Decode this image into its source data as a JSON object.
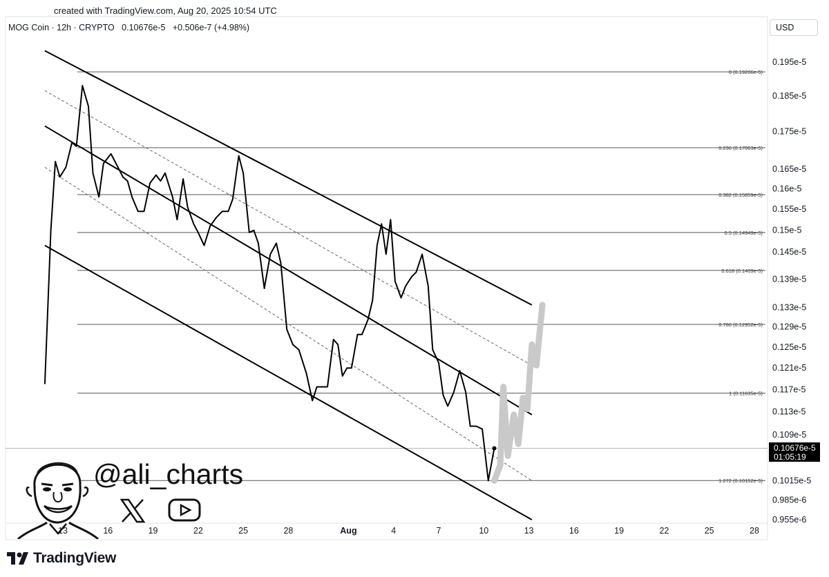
{
  "header": {
    "created": "created with TradingView.com, Aug 20, 2025 10:54 UTC",
    "symbol": "MOG Coin · 12h · CRYPTO",
    "price": "0.10676e-5",
    "change": "+0.506e-7 (+4.98%)",
    "currency": "USD"
  },
  "watermark": {
    "handle": "@ali_charts",
    "icons": [
      "avatar-caricature",
      "x-icon",
      "youtube-icon"
    ]
  },
  "footer": {
    "brand": "TradingView"
  },
  "price_badge": {
    "price": "0.10676e-5",
    "countdown": "01:05:19"
  },
  "chart_data": {
    "type": "line",
    "title": "MOG Coin · 12h · CRYPTO",
    "xlabel": "",
    "ylabel": "",
    "ylim": [
      0.0955,
      0.1985
    ],
    "x_ticks": [
      "10",
      "13",
      "16",
      "19",
      "22",
      "25",
      "28",
      "Aug",
      "4",
      "7",
      "10",
      "13",
      "16",
      "19",
      "22",
      "25",
      "28"
    ],
    "y_ticks": [
      "0.195e-5",
      "0.185e-5",
      "0.175e-5",
      "0.165e-5",
      "0.16e-5",
      "0.155e-5",
      "0.15e-5",
      "0.145e-5",
      "0.139e-5",
      "0.133e-5",
      "0.129e-5",
      "0.125e-5",
      "0.121e-5",
      "0.117e-5",
      "0.113e-5",
      "0.109e-5",
      "0.1015e-5",
      "0.985e-6",
      "0.955e-6"
    ],
    "y_tick_values": [
      0.195,
      0.185,
      0.175,
      0.165,
      0.16,
      0.155,
      0.15,
      0.145,
      0.139,
      0.133,
      0.129,
      0.125,
      0.121,
      0.117,
      0.113,
      0.109,
      0.1015,
      0.0985,
      0.0955
    ],
    "fib_levels": [
      {
        "ratio": "0",
        "label": "0 (0.19206e-5)",
        "value": 0.19206
      },
      {
        "ratio": "0.236",
        "label": "0.236 (0.17063e-5)",
        "value": 0.17063
      },
      {
        "ratio": "0.382",
        "label": "0.382 (0.15859e-5)",
        "value": 0.15859
      },
      {
        "ratio": "0.5",
        "label": "0.5 (0.14949e-5)",
        "value": 0.14949
      },
      {
        "ratio": "0.618",
        "label": "0.618 (0.1409e-5)",
        "value": 0.1409
      },
      {
        "ratio": "0.786",
        "label": "0.786 (0.12952e-5)",
        "value": 0.12952
      },
      {
        "ratio": "1",
        "label": "1 (0.11635e-5)",
        "value": 0.11635
      },
      {
        "ratio": "1.272",
        "label": "1.272 (0.10152e-5)",
        "value": 0.10152
      }
    ],
    "series": [
      {
        "values": [
          {
            "d": -1.2,
            "v": 0.118
          },
          {
            "d": -0.8,
            "v": 0.15
          },
          {
            "d": -0.5,
            "v": 0.167
          },
          {
            "d": -0.2,
            "v": 0.163
          },
          {
            "d": 0.2,
            "v": 0.1655
          },
          {
            "d": 0.6,
            "v": 0.172
          },
          {
            "d": 0.9,
            "v": 0.171
          },
          {
            "d": 1.3,
            "v": 0.188
          },
          {
            "d": 1.7,
            "v": 0.182
          },
          {
            "d": 2.0,
            "v": 0.164
          },
          {
            "d": 2.4,
            "v": 0.158
          },
          {
            "d": 2.7,
            "v": 0.1665
          },
          {
            "d": 3.2,
            "v": 0.169
          },
          {
            "d": 3.6,
            "v": 0.166
          },
          {
            "d": 4.0,
            "v": 0.163
          },
          {
            "d": 4.3,
            "v": 0.162
          },
          {
            "d": 4.6,
            "v": 0.158
          },
          {
            "d": 5.0,
            "v": 0.1545
          },
          {
            "d": 5.4,
            "v": 0.1545
          },
          {
            "d": 5.8,
            "v": 0.1615
          },
          {
            "d": 6.2,
            "v": 0.1635
          },
          {
            "d": 6.5,
            "v": 0.162
          },
          {
            "d": 6.8,
            "v": 0.164
          },
          {
            "d": 7.3,
            "v": 0.158
          },
          {
            "d": 7.6,
            "v": 0.1525
          },
          {
            "d": 8.0,
            "v": 0.1625
          },
          {
            "d": 8.3,
            "v": 0.1555
          },
          {
            "d": 8.7,
            "v": 0.1515
          },
          {
            "d": 9.0,
            "v": 0.1495
          },
          {
            "d": 9.4,
            "v": 0.1465
          },
          {
            "d": 9.8,
            "v": 0.151
          },
          {
            "d": 10.2,
            "v": 0.153
          },
          {
            "d": 10.6,
            "v": 0.1545
          },
          {
            "d": 11.0,
            "v": 0.1545
          },
          {
            "d": 11.3,
            "v": 0.1575
          },
          {
            "d": 11.7,
            "v": 0.1685
          },
          {
            "d": 12.0,
            "v": 0.164
          },
          {
            "d": 12.4,
            "v": 0.1495
          },
          {
            "d": 12.7,
            "v": 0.15
          },
          {
            "d": 13.0,
            "v": 0.147
          },
          {
            "d": 13.4,
            "v": 0.137
          },
          {
            "d": 13.8,
            "v": 0.1445
          },
          {
            "d": 14.2,
            "v": 0.147
          },
          {
            "d": 14.5,
            "v": 0.1425
          },
          {
            "d": 14.9,
            "v": 0.1285
          },
          {
            "d": 15.3,
            "v": 0.1255
          },
          {
            "d": 15.7,
            "v": 0.1245
          },
          {
            "d": 16.2,
            "v": 0.12
          },
          {
            "d": 16.6,
            "v": 0.115
          },
          {
            "d": 16.9,
            "v": 0.1175
          },
          {
            "d": 17.3,
            "v": 0.1175
          },
          {
            "d": 17.6,
            "v": 0.1175
          },
          {
            "d": 18.0,
            "v": 0.1265
          },
          {
            "d": 18.3,
            "v": 0.1255
          },
          {
            "d": 18.6,
            "v": 0.1195
          },
          {
            "d": 18.9,
            "v": 0.121
          },
          {
            "d": 19.2,
            "v": 0.121
          },
          {
            "d": 19.6,
            "v": 0.1275
          },
          {
            "d": 19.9,
            "v": 0.1275
          },
          {
            "d": 20.3,
            "v": 0.1305
          },
          {
            "d": 20.6,
            "v": 0.1345
          },
          {
            "d": 20.9,
            "v": 0.1465
          },
          {
            "d": 21.2,
            "v": 0.1515
          },
          {
            "d": 21.5,
            "v": 0.1445
          },
          {
            "d": 21.8,
            "v": 0.1525
          },
          {
            "d": 22.1,
            "v": 0.1385
          },
          {
            "d": 22.5,
            "v": 0.135
          },
          {
            "d": 22.8,
            "v": 0.1375
          },
          {
            "d": 23.2,
            "v": 0.1395
          },
          {
            "d": 23.5,
            "v": 0.1405
          },
          {
            "d": 23.9,
            "v": 0.1445
          },
          {
            "d": 24.3,
            "v": 0.1375
          },
          {
            "d": 24.6,
            "v": 0.1245
          },
          {
            "d": 25.0,
            "v": 0.122
          },
          {
            "d": 25.3,
            "v": 0.116
          },
          {
            "d": 25.6,
            "v": 0.114
          },
          {
            "d": 26.0,
            "v": 0.1165
          },
          {
            "d": 26.4,
            "v": 0.1205
          },
          {
            "d": 26.8,
            "v": 0.1165
          },
          {
            "d": 27.1,
            "v": 0.1105
          },
          {
            "d": 27.5,
            "v": 0.1105
          },
          {
            "d": 27.9,
            "v": 0.11
          },
          {
            "d": 28.3,
            "v": 0.1015
          },
          {
            "d": 28.7,
            "v": 0.10676
          }
        ]
      }
    ],
    "channels": [
      {
        "from": {
          "d": -1.2,
          "v": 0.1985
        },
        "to": {
          "d": 31.2,
          "v": 0.1335
        },
        "style": "solid"
      },
      {
        "from": {
          "d": -1.2,
          "v": 0.1865
        },
        "to": {
          "d": 31.2,
          "v": 0.1215
        },
        "style": "dashed"
      },
      {
        "from": {
          "d": -1.2,
          "v": 0.1765
        },
        "to": {
          "d": 31.2,
          "v": 0.1125
        },
        "style": "solid"
      },
      {
        "from": {
          "d": -1.2,
          "v": 0.1655
        },
        "to": {
          "d": 31.2,
          "v": 0.1015
        },
        "style": "dashed"
      },
      {
        "from": {
          "d": -1.2,
          "v": 0.1465
        },
        "to": {
          "d": 31.2,
          "v": 0.0955
        },
        "style": "solid"
      }
    ],
    "projection": [
      {
        "d": 28.7,
        "v": 0.1015
      },
      {
        "d": 29.1,
        "v": 0.104
      },
      {
        "d": 29.3,
        "v": 0.1175
      },
      {
        "d": 29.6,
        "v": 0.1055
      },
      {
        "d": 30.0,
        "v": 0.1125
      },
      {
        "d": 30.3,
        "v": 0.1075
      },
      {
        "d": 30.6,
        "v": 0.1155
      },
      {
        "d": 30.9,
        "v": 0.1135
      },
      {
        "d": 31.2,
        "v": 0.1255
      },
      {
        "d": 31.5,
        "v": 0.1215
      },
      {
        "d": 31.9,
        "v": 0.1335
      }
    ],
    "grid": false
  }
}
